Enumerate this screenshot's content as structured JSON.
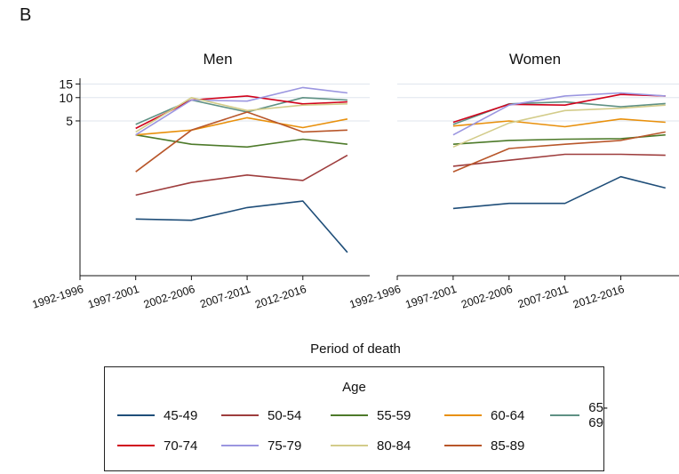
{
  "panel_label": "B",
  "xlabel": "Period of death",
  "chart_data": {
    "type": "line",
    "x_ticks": [
      "1992-1996",
      "1997-2001",
      "2002-2006",
      "2007-2011",
      "2012-2016"
    ],
    "y_ticks": [
      5,
      10,
      15
    ],
    "y_scale": "log",
    "y_range": [
      0.05,
      16
    ],
    "grid": "horizontal",
    "legend_title": "Age",
    "legend_position": "bottom",
    "series_meta": [
      {
        "name": "45-49",
        "color": "#1f4e79"
      },
      {
        "name": "50-54",
        "color": "#9e3d3d"
      },
      {
        "name": "55-59",
        "color": "#4d7a2a"
      },
      {
        "name": "60-64",
        "color": "#e8900c"
      },
      {
        "name": "65-69",
        "color": "#5f9184"
      },
      {
        "name": "70-74",
        "color": "#d0021b"
      },
      {
        "name": "75-79",
        "color": "#9b96e0"
      },
      {
        "name": "80-84",
        "color": "#d3cc8a"
      },
      {
        "name": "85-89",
        "color": "#b8562a"
      }
    ],
    "panels": [
      {
        "title": "Men",
        "x": [
          1999,
          2004,
          2009,
          2014,
          2018
        ],
        "series": [
          {
            "name": "45-49",
            "values": [
              0.27,
              0.26,
              0.38,
              0.46,
              0.1
            ]
          },
          {
            "name": "50-54",
            "values": [
              0.55,
              0.8,
              1.0,
              0.85,
              1.8
            ]
          },
          {
            "name": "55-59",
            "values": [
              3.3,
              2.5,
              2.3,
              2.9,
              2.5
            ]
          },
          {
            "name": "60-64",
            "values": [
              3.3,
              3.8,
              5.5,
              4.1,
              5.3
            ]
          },
          {
            "name": "65-69",
            "values": [
              4.5,
              9.3,
              6.5,
              10.0,
              9.3
            ]
          },
          {
            "name": "70-74",
            "values": [
              4.0,
              9.3,
              10.5,
              8.3,
              8.8
            ]
          },
          {
            "name": "75-79",
            "values": [
              3.3,
              9.3,
              9.0,
              13.5,
              11.5
            ]
          },
          {
            "name": "80-84",
            "values": [
              3.6,
              10.0,
              6.8,
              8.0,
              8.3
            ]
          },
          {
            "name": "85-89",
            "values": [
              1.1,
              3.8,
              6.5,
              3.6,
              3.8
            ]
          }
        ]
      },
      {
        "title": "Women",
        "x": [
          1999,
          2004,
          2009,
          2014,
          2018
        ],
        "series": [
          {
            "name": "45-49",
            "values": [
              0.37,
              0.43,
              0.43,
              0.95,
              0.68
            ]
          },
          {
            "name": "50-54",
            "values": [
              1.3,
              1.55,
              1.85,
              1.85,
              1.8
            ]
          },
          {
            "name": "55-59",
            "values": [
              2.5,
              2.8,
              2.9,
              2.95,
              3.3
            ]
          },
          {
            "name": "60-64",
            "values": [
              4.3,
              5.0,
              4.2,
              5.3,
              4.8
            ]
          },
          {
            "name": "65-69",
            "values": [
              4.5,
              8.3,
              8.8,
              7.6,
              8.4
            ]
          },
          {
            "name": "70-74",
            "values": [
              4.8,
              8.2,
              8.0,
              11.0,
              10.5
            ]
          },
          {
            "name": "75-79",
            "values": [
              3.3,
              8.0,
              10.5,
              11.5,
              10.5
            ]
          },
          {
            "name": "80-84",
            "values": [
              2.3,
              4.7,
              6.8,
              7.3,
              8.0
            ]
          },
          {
            "name": "85-89",
            "values": [
              1.1,
              2.2,
              2.5,
              2.8,
              3.6
            ]
          }
        ]
      }
    ]
  }
}
